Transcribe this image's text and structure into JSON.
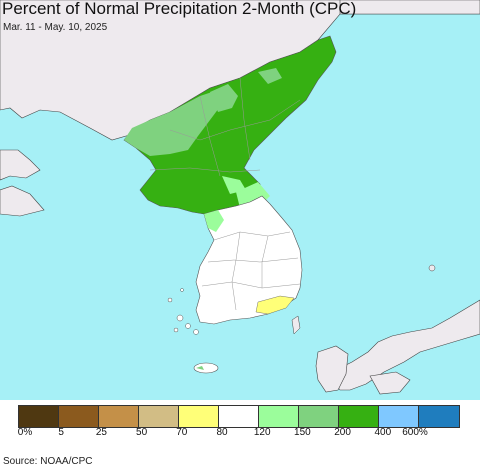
{
  "header": {
    "title": "Percent of Normal Precipitation 2-Month (CPC)",
    "subtitle": "Mar. 11 - May. 10, 2025"
  },
  "legend": {
    "colors": [
      "#4f3811",
      "#8b5a1e",
      "#c49048",
      "#d2bd85",
      "#ffff78",
      "#ffffff",
      "#9bfd9b",
      "#7fd27f",
      "#36b012",
      "#7fc8ff",
      "#1f7dbe"
    ],
    "ticks": [
      "0%",
      "5",
      "25",
      "50",
      "70",
      "80",
      "120",
      "150",
      "200",
      "400",
      "600%"
    ]
  },
  "footer": {
    "source": "Source: NOAA/CPC"
  },
  "map_colors": {
    "ocean": "#a6f0f6",
    "foreign_land": "#eeeaee",
    "normal": "#ffffff",
    "dry": "#ffff78",
    "wet_150": "#9bfd9b",
    "wet_200": "#7fd27f",
    "wet_400": "#36b012",
    "border": "#666666"
  }
}
